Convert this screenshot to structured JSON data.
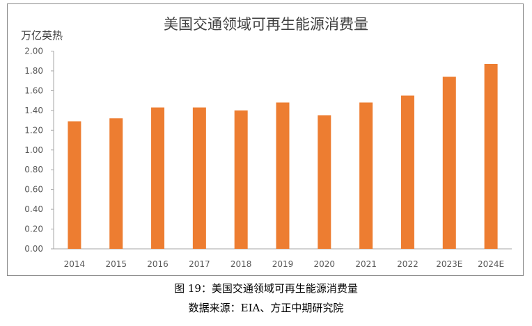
{
  "chart_data": {
    "type": "bar",
    "title": "美国交通领域可再生能源消费量",
    "ylabel": "万亿英热",
    "xlabel": "",
    "categories": [
      "2014",
      "2015",
      "2016",
      "2017",
      "2018",
      "2019",
      "2020",
      "2021",
      "2022",
      "2023E",
      "2024E"
    ],
    "values": [
      1.29,
      1.32,
      1.43,
      1.43,
      1.4,
      1.48,
      1.35,
      1.48,
      1.55,
      1.74,
      1.87
    ],
    "ylim": [
      0,
      2.0
    ],
    "yticks": [
      "0.00",
      "0.20",
      "0.40",
      "0.60",
      "0.80",
      "1.00",
      "1.20",
      "1.40",
      "1.60",
      "1.80",
      "2.00"
    ],
    "grid": false,
    "bar_color": "#ED7D31"
  },
  "caption": {
    "figure": "图 19：美国交通领域可再生能源消费量",
    "source": "数据来源：EIA、方正中期研究院"
  }
}
